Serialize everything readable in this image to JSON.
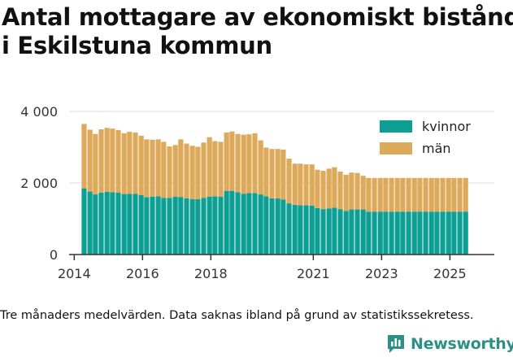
{
  "title_lines": [
    "Antal mottagare av ekonomiskt bistånd",
    "i Eskilstuna kommun"
  ],
  "note": "Tre månaders medelvärden. Data saknas ibland på grund av statistikssekretess.",
  "brand": "Newsworthy",
  "colors": {
    "kvinnor": "#0e9f94",
    "man": "#dcaa5a",
    "grid": "#dddddd",
    "brand": "#2e8f86"
  },
  "chart_data": {
    "type": "bar",
    "stacked": true,
    "title": "Antal mottagare av ekonomiskt bistånd i Eskilstuna kommun",
    "xlabel": "",
    "ylabel": "",
    "ylim": [
      0,
      4000
    ],
    "y_ticks": [
      0,
      2000,
      4000
    ],
    "y_tick_labels": [
      "0",
      "2 000",
      "4 000"
    ],
    "x_range": [
      2013.85,
      2026.3
    ],
    "x_ticks": [
      2014,
      2016,
      2018,
      2021,
      2023,
      2025
    ],
    "x_tick_labels": [
      "2014",
      "2016",
      "2018",
      "2021",
      "2023",
      "2025"
    ],
    "grid": true,
    "legend_position": "top-right",
    "x": [
      2014.29,
      2014.46,
      2014.62,
      2014.79,
      2014.96,
      2015.12,
      2015.29,
      2015.46,
      2015.62,
      2015.79,
      2015.96,
      2016.12,
      2016.29,
      2016.46,
      2016.62,
      2016.79,
      2016.96,
      2017.12,
      2017.29,
      2017.46,
      2017.62,
      2017.79,
      2017.96,
      2018.12,
      2018.29,
      2018.46,
      2018.62,
      2018.79,
      2018.96,
      2019.12,
      2019.29,
      2019.46,
      2019.62,
      2019.79,
      2019.96,
      2020.12,
      2020.29,
      2020.46,
      2020.62,
      2020.79,
      2020.96,
      2021.12,
      2021.29,
      2021.46,
      2021.62,
      2021.79,
      2021.96,
      2022.12,
      2022.29,
      2022.46,
      2022.62,
      2022.79,
      2022.96,
      2023.12,
      2023.29,
      2023.46,
      2023.62,
      2023.79,
      2023.96,
      2024.12,
      2024.29,
      2024.46,
      2024.62,
      2024.79,
      2024.96,
      2025.12,
      2025.29,
      2025.46
    ],
    "series": [
      {
        "name": "kvinnor",
        "color": "#0e9f94",
        "values": [
          1850,
          1760,
          1680,
          1730,
          1750,
          1740,
          1730,
          1690,
          1700,
          1700,
          1660,
          1600,
          1620,
          1630,
          1580,
          1580,
          1620,
          1610,
          1570,
          1550,
          1550,
          1580,
          1620,
          1630,
          1620,
          1780,
          1780,
          1740,
          1700,
          1720,
          1720,
          1680,
          1630,
          1570,
          1570,
          1540,
          1430,
          1390,
          1380,
          1380,
          1370,
          1300,
          1270,
          1290,
          1310,
          1270,
          1220,
          1260,
          1260,
          1260,
          1200,
          1200,
          1200,
          1200,
          1200,
          1200,
          1200,
          1200,
          1200,
          1200,
          1200,
          1200,
          1200,
          1200,
          1200,
          1200,
          1200,
          1200
        ]
      },
      {
        "name": "män",
        "color": "#dcaa5a",
        "values": [
          1800,
          1730,
          1690,
          1770,
          1790,
          1780,
          1750,
          1700,
          1730,
          1710,
          1660,
          1620,
          1590,
          1590,
          1570,
          1440,
          1440,
          1610,
          1530,
          1490,
          1460,
          1550,
          1660,
          1540,
          1530,
          1630,
          1660,
          1630,
          1650,
          1640,
          1670,
          1510,
          1360,
          1380,
          1380,
          1390,
          1250,
          1150,
          1160,
          1140,
          1150,
          1070,
          1070,
          1110,
          1130,
          1050,
          1010,
          1030,
          1020,
          940,
          940,
          940,
          940,
          940,
          940,
          940,
          940,
          940,
          940,
          940,
          940,
          940,
          940,
          940,
          940,
          940,
          940,
          940
        ]
      }
    ]
  }
}
